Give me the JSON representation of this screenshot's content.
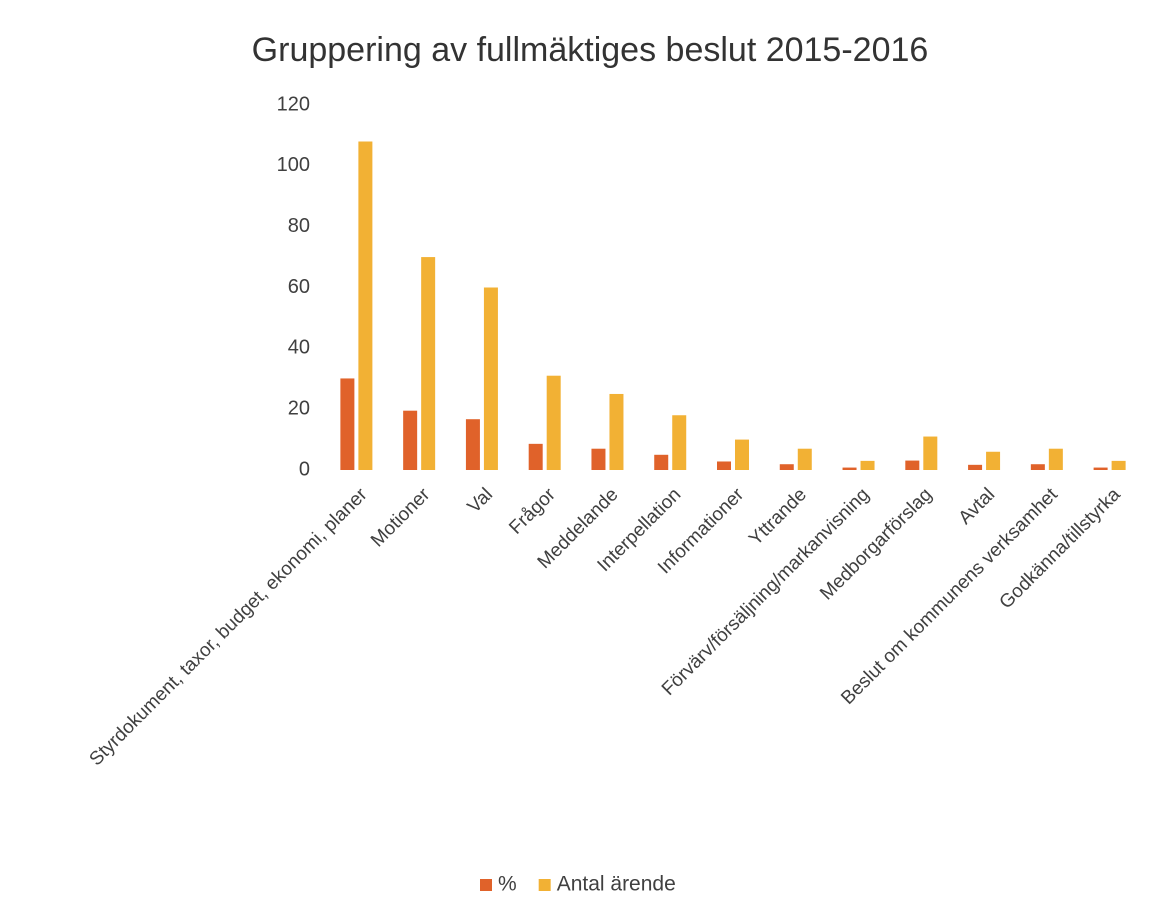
{
  "chart_data": {
    "type": "bar",
    "title": "Gruppering av fullmäktiges beslut 2015-2016",
    "categories": [
      "Styrdokument, taxor, budget, ekonomi, planer",
      "Motioner",
      "Val",
      "Frågor",
      "Meddelande",
      "Interpellation",
      "Informationer",
      "Yttrande",
      "Förvärv/försäljning/markanvisning",
      "Medborgarförslag",
      "Avtal",
      "Beslut om kommunens verksamhet",
      "Godkänna/tillstyrka"
    ],
    "series": [
      {
        "name": "%",
        "color": "#e0622a",
        "values": [
          30.1,
          19.5,
          16.7,
          8.6,
          7.0,
          5.0,
          2.8,
          1.9,
          0.8,
          3.1,
          1.7,
          1.9,
          0.8
        ]
      },
      {
        "name": "Antal ärende",
        "color": "#f2b134",
        "values": [
          108,
          70,
          60,
          31,
          25,
          18,
          10,
          7,
          3,
          11,
          6,
          7,
          3
        ]
      }
    ],
    "ylim": [
      0,
      120
    ],
    "yticks": [
      0,
      20,
      40,
      60,
      80,
      100,
      120
    ],
    "grid": false,
    "legend": "bottom"
  }
}
